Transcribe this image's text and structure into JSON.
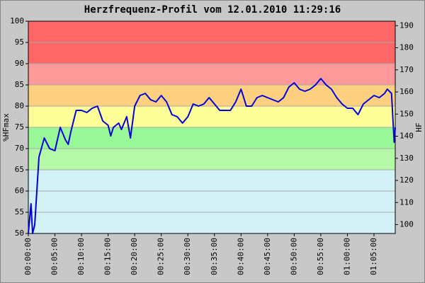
{
  "chart_data": {
    "type": "line",
    "title": "Herzfrequenz-Profil vom 12.01.2010 11:29:16",
    "ylabel": "%HFmax",
    "y2label": "HF",
    "xlim": [
      0,
      69
    ],
    "ylim": [
      50,
      100
    ],
    "y2lim": [
      96,
      192
    ],
    "yticks": [
      50,
      55,
      60,
      65,
      70,
      75,
      80,
      85,
      90,
      95,
      100
    ],
    "y2ticks": [
      100,
      110,
      120,
      130,
      140,
      150,
      160,
      170,
      180,
      190
    ],
    "xticks": [
      {
        "value": 0,
        "label": "00:00:00"
      },
      {
        "value": 5,
        "label": "00:05:00"
      },
      {
        "value": 10,
        "label": "00:10:00"
      },
      {
        "value": 15,
        "label": "00:15:00"
      },
      {
        "value": 20,
        "label": "00:20:00"
      },
      {
        "value": 25,
        "label": "00:25:00"
      },
      {
        "value": 30,
        "label": "00:30:00"
      },
      {
        "value": 35,
        "label": "00:35:00"
      },
      {
        "value": 40,
        "label": "00:40:00"
      },
      {
        "value": 45,
        "label": "00:45:00"
      },
      {
        "value": 50,
        "label": "00:50:00"
      },
      {
        "value": 55,
        "label": "00:55:00"
      },
      {
        "value": 60,
        "label": "01:00:00"
      },
      {
        "value": 65,
        "label": "01:05:00"
      }
    ],
    "grid": true,
    "zones": [
      {
        "from": 50,
        "to": 65,
        "color": "#d2f2f8"
      },
      {
        "from": 65,
        "to": 70,
        "color": "#b4f8a8"
      },
      {
        "from": 70,
        "to": 75,
        "color": "#98f898"
      },
      {
        "from": 75,
        "to": 80,
        "color": "#ffff99"
      },
      {
        "from": 80,
        "to": 85,
        "color": "#ffd080"
      },
      {
        "from": 85,
        "to": 90,
        "color": "#ff9a9a"
      },
      {
        "from": 90,
        "to": 100,
        "color": "#ff6666"
      }
    ],
    "series": [
      {
        "color": "#0000dd",
        "x": [
          0,
          0.5,
          0.8,
          1.2,
          1.6,
          2,
          3,
          4,
          5,
          6,
          7,
          7.5,
          8,
          9,
          10,
          11,
          12,
          13,
          14,
          15,
          15.5,
          16,
          17,
          17.5,
          18.5,
          19.2,
          20,
          21,
          22,
          23,
          24,
          25,
          26,
          27,
          28,
          29,
          30,
          31,
          32,
          33,
          34,
          35,
          36,
          37,
          38,
          39,
          40,
          41,
          42,
          43,
          44,
          45,
          46,
          47,
          48,
          49,
          50,
          51,
          52,
          53,
          54,
          55,
          56,
          57,
          58,
          59,
          60,
          61,
          62,
          63,
          64,
          65,
          66,
          67,
          67.5,
          68.3,
          68.8,
          69
        ],
        "values": [
          50,
          57,
          50,
          52,
          60,
          68,
          72.5,
          70,
          69.5,
          75,
          72,
          71,
          74,
          79,
          79,
          78.5,
          79.5,
          80,
          76.5,
          75.5,
          73,
          75,
          76,
          74.5,
          77.5,
          72.5,
          80,
          82.5,
          83,
          81.5,
          81,
          82.5,
          81,
          78,
          77.5,
          76,
          77.5,
          80.5,
          80,
          80.5,
          82,
          80.5,
          79,
          79,
          79,
          81,
          84,
          80,
          80,
          82,
          82.5,
          82,
          81.5,
          81,
          82,
          84.5,
          85.5,
          84,
          83.5,
          84,
          85,
          86.5,
          85,
          84,
          82,
          80.5,
          79.5,
          79.5,
          78,
          80.5,
          81.5,
          82.5,
          82,
          83,
          84,
          83,
          71.5,
          75
        ]
      }
    ]
  }
}
